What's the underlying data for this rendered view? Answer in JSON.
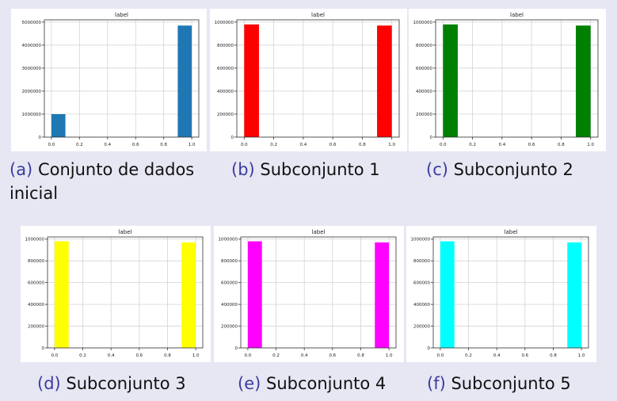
{
  "figures": [
    {
      "caption_label": "(a)",
      "caption_text": "Conjunto de dados inicial",
      "chart_data": {
        "type": "bar",
        "title": "label",
        "bar_color": "#1f77b4",
        "bins": [
          [
            0.0,
            0.1
          ],
          [
            0.9,
            1.0
          ]
        ],
        "values": [
          1000000,
          4850000
        ],
        "xlim": [
          -0.05,
          1.05
        ],
        "ylim": [
          0,
          5100000
        ],
        "xticks": [
          0.0,
          0.2,
          0.4,
          0.6,
          0.8,
          1.0
        ],
        "xtick_labels": [
          "0.0",
          "0.2",
          "0.4",
          "0.6",
          "0.8",
          "1.0"
        ],
        "yticks": [
          0,
          1000000,
          2000000,
          3000000,
          4000000,
          5000000
        ],
        "ytick_labels": [
          "0",
          "1000000",
          "2000000",
          "3000000",
          "4000000",
          "5000000"
        ],
        "grid": true
      }
    },
    {
      "caption_label": "(b)",
      "caption_text": "Subconjunto 1",
      "chart_data": {
        "type": "bar",
        "title": "label",
        "bar_color": "#ff0000",
        "bins": [
          [
            0.0,
            0.1
          ],
          [
            0.9,
            1.0
          ]
        ],
        "values": [
          980000,
          970000
        ],
        "xlim": [
          -0.05,
          1.05
        ],
        "ylim": [
          0,
          1020000
        ],
        "xticks": [
          0.0,
          0.2,
          0.4,
          0.6,
          0.8,
          1.0
        ],
        "xtick_labels": [
          "0.0",
          "0.2",
          "0.4",
          "0.6",
          "0.8",
          "1.0"
        ],
        "yticks": [
          0,
          200000,
          400000,
          600000,
          800000,
          1000000
        ],
        "ytick_labels": [
          "0",
          "200000",
          "400000",
          "600000",
          "800000",
          "1000000"
        ],
        "grid": true
      }
    },
    {
      "caption_label": "(c)",
      "caption_text": "Subconjunto 2",
      "chart_data": {
        "type": "bar",
        "title": "label",
        "bar_color": "#008000",
        "bins": [
          [
            0.0,
            0.1
          ],
          [
            0.9,
            1.0
          ]
        ],
        "values": [
          980000,
          970000
        ],
        "xlim": [
          -0.05,
          1.05
        ],
        "ylim": [
          0,
          1020000
        ],
        "xticks": [
          0.0,
          0.2,
          0.4,
          0.6,
          0.8,
          1.0
        ],
        "xtick_labels": [
          "0.0",
          "0.2",
          "0.4",
          "0.6",
          "0.8",
          "1.0"
        ],
        "yticks": [
          0,
          200000,
          400000,
          600000,
          800000,
          1000000
        ],
        "ytick_labels": [
          "0",
          "200000",
          "400000",
          "600000",
          "800000",
          "1000000"
        ],
        "grid": true
      }
    },
    {
      "caption_label": "(d)",
      "caption_text": "Subconjunto 3",
      "chart_data": {
        "type": "bar",
        "title": "label",
        "bar_color": "#ffff00",
        "bins": [
          [
            0.0,
            0.1
          ],
          [
            0.9,
            1.0
          ]
        ],
        "values": [
          980000,
          970000
        ],
        "xlim": [
          -0.05,
          1.05
        ],
        "ylim": [
          0,
          1020000
        ],
        "xticks": [
          0.0,
          0.2,
          0.4,
          0.6,
          0.8,
          1.0
        ],
        "xtick_labels": [
          "0.0",
          "0.2",
          "0.4",
          "0.6",
          "0.8",
          "1.0"
        ],
        "yticks": [
          0,
          200000,
          400000,
          600000,
          800000,
          1000000
        ],
        "ytick_labels": [
          "0",
          "200000",
          "400000",
          "600000",
          "800000",
          "1000000"
        ],
        "grid": true
      }
    },
    {
      "caption_label": "(e)",
      "caption_text": "Subconjunto 4",
      "chart_data": {
        "type": "bar",
        "title": "label",
        "bar_color": "#ff00ff",
        "bins": [
          [
            0.0,
            0.1
          ],
          [
            0.9,
            1.0
          ]
        ],
        "values": [
          980000,
          970000
        ],
        "xlim": [
          -0.05,
          1.05
        ],
        "ylim": [
          0,
          1020000
        ],
        "xticks": [
          0.0,
          0.2,
          0.4,
          0.6,
          0.8,
          1.0
        ],
        "xtick_labels": [
          "0.0",
          "0.2",
          "0.4",
          "0.6",
          "0.8",
          "1.0"
        ],
        "yticks": [
          0,
          200000,
          400000,
          600000,
          800000,
          1000000
        ],
        "ytick_labels": [
          "0",
          "200000",
          "400000",
          "600000",
          "800000",
          "1000000"
        ],
        "grid": true
      }
    },
    {
      "caption_label": "(f)",
      "caption_text": "Subconjunto 5",
      "chart_data": {
        "type": "bar",
        "title": "label",
        "bar_color": "#00ffff",
        "bins": [
          [
            0.0,
            0.1
          ],
          [
            0.9,
            1.0
          ]
        ],
        "values": [
          980000,
          970000
        ],
        "xlim": [
          -0.05,
          1.05
        ],
        "ylim": [
          0,
          1020000
        ],
        "xticks": [
          0.0,
          0.2,
          0.4,
          0.6,
          0.8,
          1.0
        ],
        "xtick_labels": [
          "0.0",
          "0.2",
          "0.4",
          "0.6",
          "0.8",
          "1.0"
        ],
        "yticks": [
          0,
          200000,
          400000,
          600000,
          800000,
          1000000
        ],
        "ytick_labels": [
          "0",
          "200000",
          "400000",
          "600000",
          "800000",
          "1000000"
        ],
        "grid": true
      }
    }
  ]
}
